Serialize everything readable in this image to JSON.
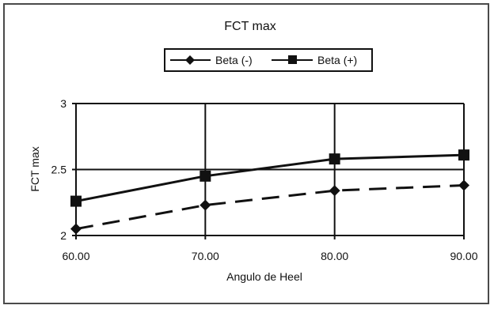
{
  "chart_data": {
    "type": "line",
    "title": "FCT max",
    "xlabel": "Angulo de Heel",
    "ylabel": "FCT max",
    "x": [
      60,
      70,
      80,
      90
    ],
    "x_tick_labels": [
      "60.00",
      "70.00",
      "80.00",
      "90.00"
    ],
    "y_tick_labels": [
      "2",
      "2.5",
      "3"
    ],
    "xlim": [
      60,
      90
    ],
    "ylim": [
      2,
      3
    ],
    "grid": true,
    "legend_position": "top-center",
    "series": [
      {
        "name": "Beta (-)",
        "values": [
          2.05,
          2.23,
          2.34,
          2.38
        ],
        "line_style": "dashed",
        "marker": "diamond",
        "color": "#111111"
      },
      {
        "name": "Beta (+)",
        "values": [
          2.26,
          2.45,
          2.58,
          2.61
        ],
        "line_style": "solid",
        "marker": "square",
        "color": "#111111"
      }
    ]
  }
}
